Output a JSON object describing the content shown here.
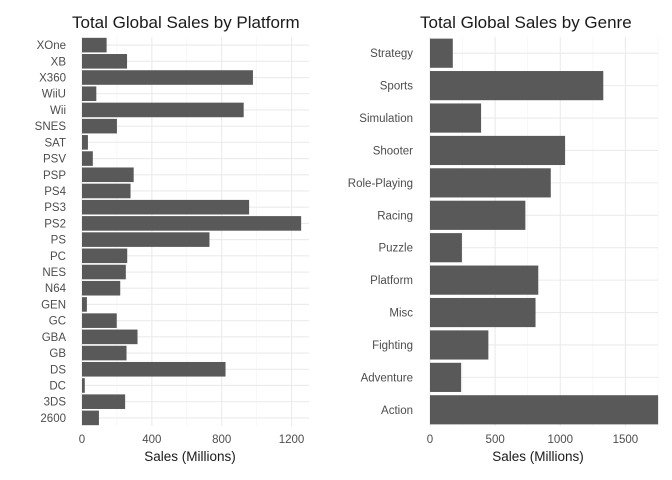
{
  "chart_data": [
    {
      "type": "bar",
      "orientation": "horizontal",
      "title": "Total Global Sales by Platform",
      "xlabel": "Sales (Millions)",
      "ylabel": "",
      "xlim": [
        0,
        1300
      ],
      "xticks": [
        0,
        400,
        800,
        1200
      ],
      "grid": true,
      "categories": [
        "2600",
        "3DS",
        "DC",
        "DS",
        "GB",
        "GBA",
        "GC",
        "GEN",
        "N64",
        "NES",
        "PC",
        "PS",
        "PS2",
        "PS3",
        "PS4",
        "PSP",
        "PSV",
        "SAT",
        "SNES",
        "Wii",
        "WiiU",
        "X360",
        "XB",
        "XOne"
      ],
      "values": [
        97,
        247,
        16,
        822,
        255,
        318,
        199,
        28,
        219,
        251,
        259,
        730,
        1255,
        957,
        278,
        296,
        62,
        34,
        200,
        926,
        82,
        979,
        258,
        141
      ]
    },
    {
      "type": "bar",
      "orientation": "horizontal",
      "title": "Total Global Sales by Genre",
      "xlabel": "Sales (Millions)",
      "ylabel": "",
      "xlim": [
        0,
        1750
      ],
      "xticks": [
        0,
        500,
        1000,
        1500
      ],
      "grid": true,
      "categories": [
        "Action",
        "Adventure",
        "Fighting",
        "Misc",
        "Platform",
        "Puzzle",
        "Racing",
        "Role-Playing",
        "Shooter",
        "Simulation",
        "Sports",
        "Strategy"
      ],
      "values": [
        1751,
        239,
        448,
        810,
        831,
        245,
        732,
        927,
        1037,
        392,
        1330,
        175
      ]
    }
  ]
}
